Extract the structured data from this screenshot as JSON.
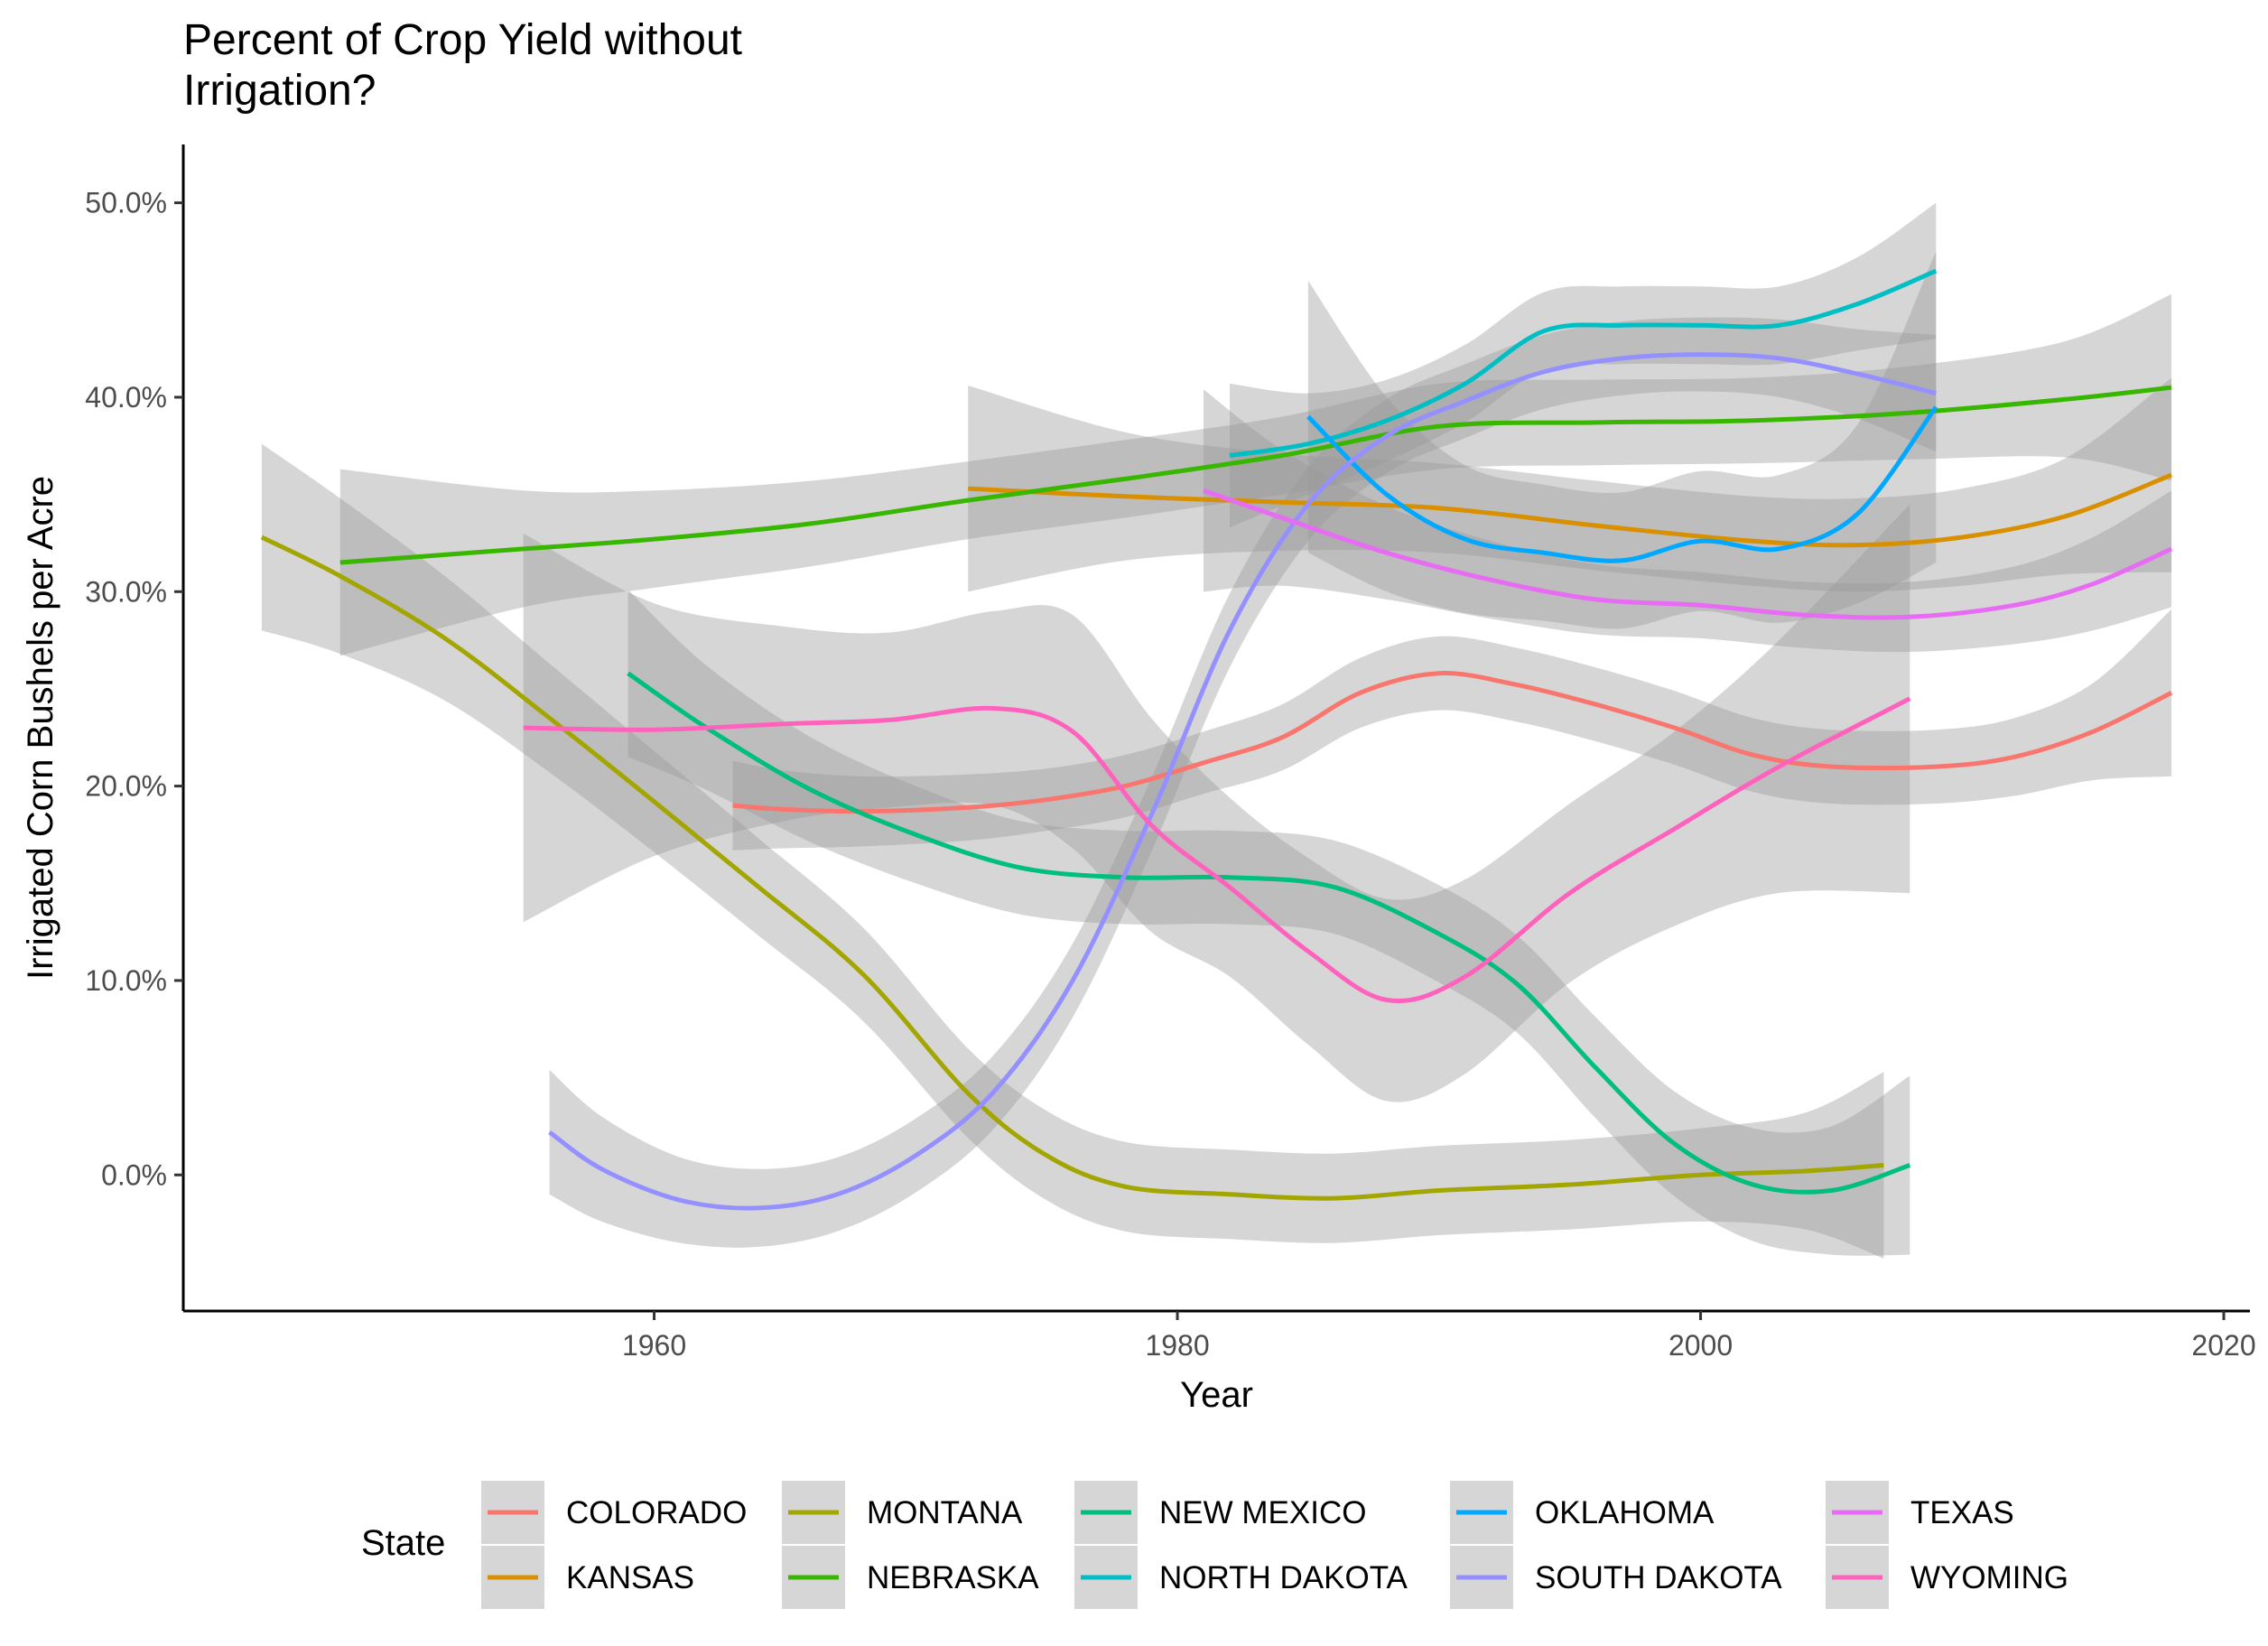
{
  "chart_data": {
    "type": "line",
    "title": "Percent of Crop Yield without\nIrrigation?",
    "xlabel": "Year",
    "ylabel": "Irrigated Corn Bushels per Acre",
    "xlim": [
      1942,
      2021
    ],
    "ylim": [
      -7,
      53
    ],
    "xticks": [
      1960,
      1980,
      2000,
      2020
    ],
    "xtick_labels": [
      "1960",
      "1980",
      "2000",
      "2020"
    ],
    "yticks": [
      0,
      10,
      20,
      30,
      40,
      50
    ],
    "ytick_labels": [
      "0.0%",
      "10.0%",
      "20.0%",
      "30.0%",
      "40.0%",
      "50.0%"
    ],
    "grid": false,
    "legend": {
      "title": "State",
      "position": "bottom",
      "entries": [
        "COLORADO",
        "KANSAS",
        "MONTANA",
        "NEBRASKA",
        "NEW MEXICO",
        "NORTH DAKOTA",
        "OKLAHOMA",
        "SOUTH DAKOTA",
        "TEXAS",
        "WYOMING"
      ]
    },
    "series": [
      {
        "name": "COLORADO",
        "color": "#F8766D",
        "x": [
          1963,
          1965,
          1968,
          1972,
          1975,
          1978,
          1981,
          1984,
          1987,
          1990,
          1993,
          1996,
          1999,
          2002,
          2005,
          2009,
          2012,
          2015,
          2018
        ],
        "y": [
          19.0,
          18.8,
          18.7,
          18.9,
          19.3,
          20.0,
          21.2,
          22.5,
          24.8,
          25.8,
          25.2,
          24.2,
          23.0,
          21.6,
          21.0,
          21.0,
          21.5,
          22.8,
          24.8
        ],
        "band": [
          2.3,
          2.0,
          1.8,
          1.7,
          1.6,
          1.6,
          1.6,
          1.7,
          1.8,
          1.9,
          1.9,
          1.9,
          1.9,
          1.9,
          1.9,
          1.9,
          2.0,
          2.5,
          4.3
        ]
      },
      {
        "name": "KANSAS",
        "color": "#D89000",
        "x": [
          1972,
          1978,
          1984,
          1990,
          1996,
          2002,
          2006,
          2010,
          2014,
          2018
        ],
        "y": [
          35.3,
          34.9,
          34.6,
          34.3,
          33.4,
          32.6,
          32.4,
          32.8,
          33.9,
          36.0
        ],
        "band": [
          5.3,
          3.3,
          2.5,
          2.3,
          2.3,
          2.3,
          2.4,
          2.5,
          3.0,
          5.0
        ]
      },
      {
        "name": "MONTANA",
        "color": "#A3A500",
        "x": [
          1945,
          1948,
          1952,
          1956,
          1960,
          1964,
          1968,
          1972,
          1975,
          1978,
          1982,
          1986,
          1990,
          1995,
          2000,
          2004,
          2007
        ],
        "y": [
          32.8,
          30.8,
          27.6,
          23.5,
          19.2,
          14.8,
          10.3,
          4.2,
          1.0,
          -0.6,
          -1.0,
          -1.2,
          -0.8,
          -0.5,
          0.0,
          0.2,
          0.5
        ],
        "band": [
          4.8,
          4.0,
          3.2,
          2.8,
          2.6,
          2.5,
          2.4,
          2.3,
          2.3,
          2.3,
          2.3,
          2.3,
          2.3,
          2.3,
          2.4,
          3.0,
          4.8
        ]
      },
      {
        "name": "NEBRASKA",
        "color": "#39B600",
        "x": [
          1948,
          1955,
          1960,
          1966,
          1972,
          1978,
          1984,
          1990,
          1996,
          2002,
          2008,
          2014,
          2018
        ],
        "y": [
          31.5,
          32.2,
          32.7,
          33.5,
          34.7,
          35.8,
          37.0,
          38.5,
          38.7,
          38.8,
          39.2,
          39.9,
          40.5
        ],
        "band": [
          4.8,
          3.0,
          2.5,
          2.2,
          2.0,
          2.0,
          2.0,
          2.2,
          2.2,
          2.2,
          2.4,
          3.0,
          4.8
        ]
      },
      {
        "name": "NEW MEXICO",
        "color": "#00BF7D",
        "x": [
          1959,
          1962,
          1966,
          1970,
          1974,
          1978,
          1982,
          1986,
          1990,
          1993,
          1996,
          1999,
          2002,
          2005,
          2008
        ],
        "y": [
          25.8,
          23.0,
          19.8,
          17.5,
          15.8,
          15.3,
          15.3,
          14.8,
          12.4,
          9.8,
          5.5,
          1.6,
          -0.5,
          -0.8,
          0.5
        ],
        "band": [
          4.3,
          3.2,
          2.7,
          2.5,
          2.4,
          2.4,
          2.4,
          2.4,
          2.5,
          2.5,
          2.6,
          2.7,
          2.9,
          3.3,
          4.6
        ]
      },
      {
        "name": "NORTH DAKOTA",
        "color": "#00BFC4",
        "x": [
          1982,
          1985,
          1988,
          1991,
          1994,
          1997,
          2000,
          2003,
          2006,
          2009
        ],
        "y": [
          37.0,
          37.6,
          38.8,
          40.7,
          43.4,
          43.7,
          43.7,
          43.7,
          44.8,
          46.5
        ],
        "band": [
          3.7,
          2.6,
          2.1,
          2.0,
          2.0,
          2.0,
          2.0,
          2.0,
          2.4,
          3.5
        ]
      },
      {
        "name": "OKLAHOMA",
        "color": "#00A9FF",
        "x": [
          1985,
          1988,
          1991,
          1994,
          1997,
          2000,
          2003,
          2006,
          2009
        ],
        "y": [
          39.0,
          35.0,
          32.7,
          32.0,
          31.6,
          32.6,
          32.2,
          34.0,
          39.5
        ],
        "band": [
          7.0,
          5.0,
          3.8,
          3.5,
          3.5,
          3.6,
          3.8,
          4.6,
          8.0
        ]
      },
      {
        "name": "SOUTH DAKOTA",
        "color": "#9590FF",
        "x": [
          1956,
          1958,
          1961,
          1964,
          1967,
          1970,
          1973,
          1976,
          1979,
          1982,
          1985,
          1988,
          1991,
          1994,
          1997,
          2000,
          2003,
          2006,
          2009
        ],
        "y": [
          2.2,
          0.3,
          -1.3,
          -1.7,
          -1.0,
          1.0,
          4.3,
          10.0,
          18.5,
          28.0,
          34.5,
          38.0,
          39.8,
          41.3,
          42.0,
          42.2,
          42.0,
          41.2,
          40.2
        ],
        "band": [
          3.2,
          2.7,
          2.2,
          2.0,
          1.9,
          1.9,
          1.9,
          1.9,
          1.9,
          1.9,
          1.9,
          1.9,
          1.9,
          1.9,
          1.9,
          1.9,
          2.0,
          2.3,
          3.0
        ]
      },
      {
        "name": "TEXAS",
        "color": "#E76BF3",
        "x": [
          1981,
          1984,
          1988,
          1992,
          1996,
          2000,
          2004,
          2008,
          2012,
          2015,
          2018
        ],
        "y": [
          35.2,
          33.8,
          32.0,
          30.6,
          29.6,
          29.3,
          28.8,
          28.7,
          29.3,
          30.4,
          32.2
        ],
        "band": [
          5.2,
          3.5,
          2.4,
          2.0,
          1.8,
          1.7,
          1.7,
          1.8,
          2.0,
          2.4,
          3.0
        ]
      },
      {
        "name": "WYOMING",
        "color": "#FF62BC",
        "x": [
          1955,
          1960,
          1965,
          1969,
          1973,
          1976,
          1979,
          1982,
          1985,
          1988,
          1991,
          1995,
          1999,
          2003,
          2008
        ],
        "y": [
          23.0,
          22.9,
          23.2,
          23.4,
          24.0,
          22.8,
          18.0,
          14.8,
          11.5,
          9.0,
          10.2,
          14.5,
          17.8,
          21.0,
          24.5
        ],
        "band": [
          10.0,
          6.5,
          5.0,
          4.5,
          5.0,
          6.0,
          5.5,
          4.6,
          4.8,
          5.2,
          5.0,
          4.6,
          5.0,
          6.5,
          10.0
        ]
      }
    ]
  }
}
